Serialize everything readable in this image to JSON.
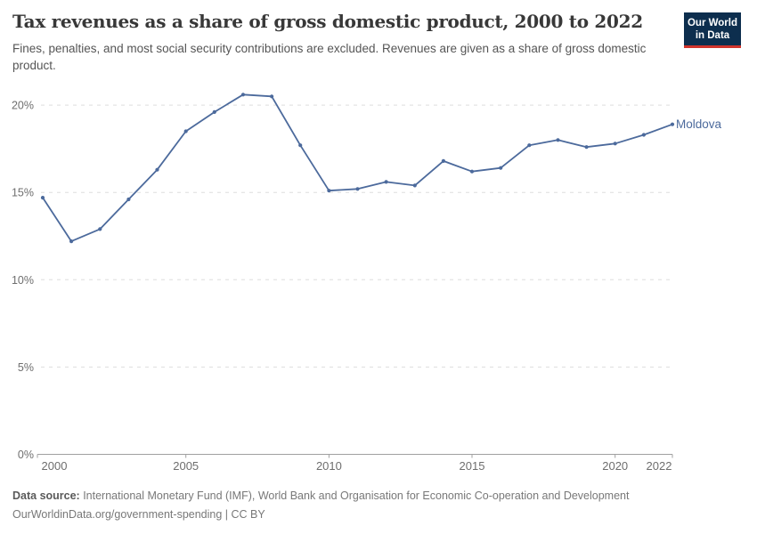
{
  "header": {
    "title": "Tax revenues as a share of gross domestic product, 2000 to 2022",
    "subtitle": "Fines, penalties, and most social security contributions are excluded. Revenues are given as a share of gross domestic product."
  },
  "logo": {
    "line1": "Our World",
    "line2": "in Data",
    "bg_color": "#0D2E4E",
    "accent_color": "#D0342C"
  },
  "chart_data": {
    "type": "line",
    "title": "Tax revenues as a share of gross domestic product, 2000 to 2022",
    "x": [
      2000,
      2001,
      2002,
      2003,
      2004,
      2005,
      2006,
      2007,
      2008,
      2009,
      2010,
      2011,
      2012,
      2013,
      2014,
      2015,
      2016,
      2017,
      2018,
      2019,
      2020,
      2021,
      2022
    ],
    "series": [
      {
        "name": "Moldova",
        "color": "#4C6A9C",
        "values": [
          14.7,
          12.2,
          12.9,
          14.6,
          16.3,
          18.5,
          19.6,
          20.6,
          20.5,
          17.7,
          15.1,
          15.2,
          15.6,
          15.4,
          16.8,
          16.2,
          16.4,
          17.7,
          18.0,
          17.6,
          17.8,
          18.3,
          18.9
        ]
      }
    ],
    "unit": "%",
    "ylim": [
      0,
      20
    ],
    "ytick_values": [
      0,
      5,
      10,
      15,
      20
    ],
    "yticks": [
      "0%",
      "5%",
      "10%",
      "15%",
      "20%"
    ],
    "xticks": [
      2000,
      2005,
      2010,
      2015,
      2020,
      2022
    ],
    "grid": "horizontal-dashed",
    "legend_position": "end-of-line-label",
    "grid_color": "#dddddd",
    "axis_color": "#a0a0a0",
    "tick_label_color": "#6e6e6e"
  },
  "footer": {
    "datasource_label": "Data source:",
    "datasource_text": " International Monetary Fund (IMF), World Bank and Organisation for Economic Co-operation and Development",
    "license_line": "OurWorldinData.org/government-spending | CC BY"
  }
}
